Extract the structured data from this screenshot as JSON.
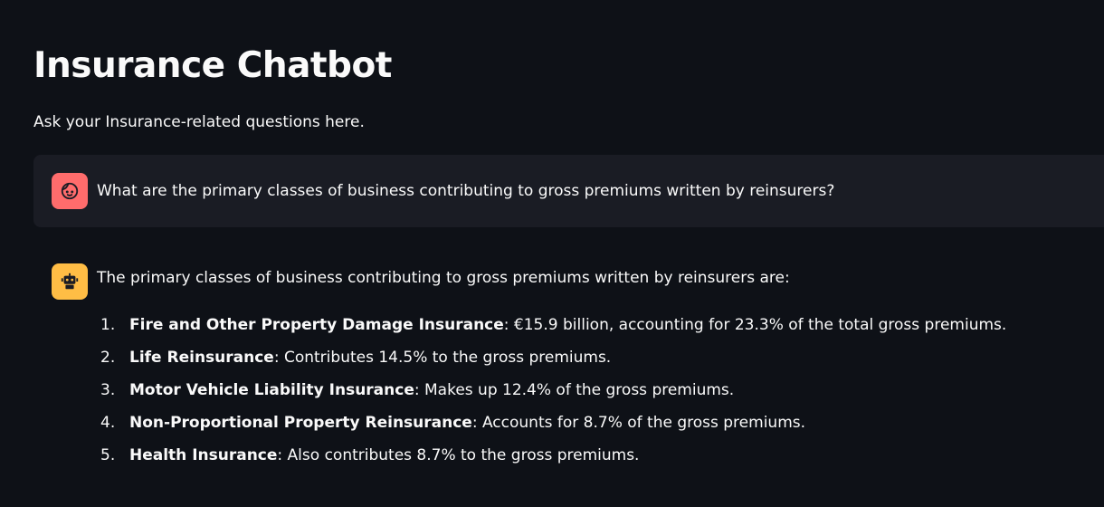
{
  "header": {
    "title": "Insurance Chatbot",
    "subtitle": "Ask your Insurance-related questions here."
  },
  "colors": {
    "background": "#0e1117",
    "user_message_bg": "#1a1c24",
    "user_avatar": "#ff6c6c",
    "assistant_avatar": "#ffbd45",
    "text": "#fafafa"
  },
  "messages": {
    "user": {
      "avatar_icon": "user-face-icon",
      "text": "What are the primary classes of business contributing to gross premiums written by reinsurers?"
    },
    "assistant": {
      "avatar_icon": "robot-icon",
      "intro": "The primary classes of business contributing to gross premiums written by reinsurers are:",
      "items": [
        {
          "num": "1.",
          "bold": "Fire and Other Property Damage Insurance",
          "rest": ": €15.9 billion, accounting for 23.3% of the total gross premiums."
        },
        {
          "num": "2.",
          "bold": "Life Reinsurance",
          "rest": ": Contributes 14.5% to the gross premiums."
        },
        {
          "num": "3.",
          "bold": "Motor Vehicle Liability Insurance",
          "rest": ": Makes up 12.4% of the gross premiums."
        },
        {
          "num": "4.",
          "bold": "Non-Proportional Property Reinsurance",
          "rest": ": Accounts for 8.7% of the gross premiums."
        },
        {
          "num": "5.",
          "bold": "Health Insurance",
          "rest": ": Also contributes 8.7% to the gross premiums."
        }
      ]
    }
  }
}
